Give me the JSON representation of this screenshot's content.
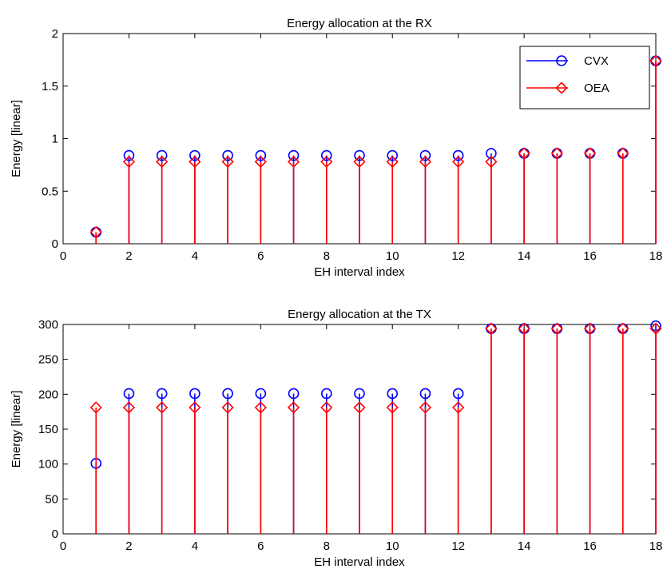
{
  "chart_data": [
    {
      "type": "stem",
      "title": "Energy allocation at the RX",
      "xlabel": "EH interval index",
      "ylabel": "Energy [linear]",
      "xlim": [
        0,
        18
      ],
      "ylim": [
        0,
        2
      ],
      "xticks": [
        "0",
        "2",
        "4",
        "6",
        "8",
        "10",
        "12",
        "14",
        "16",
        "18"
      ],
      "yticks": [
        "0",
        "0.5",
        "1",
        "1.5",
        "2"
      ],
      "grid": false,
      "legend_position": "top-right",
      "x": [
        1,
        2,
        3,
        4,
        5,
        6,
        7,
        8,
        9,
        10,
        11,
        12,
        13,
        14,
        15,
        16,
        17,
        18
      ],
      "series": [
        {
          "name": "CVX",
          "color": "#0000ff",
          "marker": "circle",
          "values": [
            0.11,
            0.84,
            0.84,
            0.84,
            0.84,
            0.84,
            0.84,
            0.84,
            0.84,
            0.84,
            0.84,
            0.84,
            0.86,
            0.86,
            0.86,
            0.86,
            0.86,
            1.74
          ]
        },
        {
          "name": "OEA",
          "color": "#ff0000",
          "marker": "diamond",
          "values": [
            0.11,
            0.78,
            0.78,
            0.78,
            0.78,
            0.78,
            0.78,
            0.78,
            0.78,
            0.78,
            0.78,
            0.78,
            0.78,
            0.86,
            0.86,
            0.86,
            0.86,
            1.74
          ]
        }
      ]
    },
    {
      "type": "stem",
      "title": "Energy allocation at the TX",
      "xlabel": "EH interval index",
      "ylabel": "Energy [linear]",
      "xlim": [
        0,
        18
      ],
      "ylim": [
        0,
        300
      ],
      "xticks": [
        "0",
        "2",
        "4",
        "6",
        "8",
        "10",
        "12",
        "14",
        "16",
        "18"
      ],
      "yticks": [
        "0",
        "50",
        "100",
        "150",
        "200",
        "250",
        "300"
      ],
      "grid": false,
      "x": [
        1,
        2,
        3,
        4,
        5,
        6,
        7,
        8,
        9,
        10,
        11,
        12,
        13,
        14,
        15,
        16,
        17,
        18
      ],
      "series": [
        {
          "name": "CVX",
          "color": "#0000ff",
          "marker": "circle",
          "values": [
            101,
            201,
            201,
            201,
            201,
            201,
            201,
            201,
            201,
            201,
            201,
            201,
            294,
            294,
            294,
            294,
            294,
            298
          ]
        },
        {
          "name": "OEA",
          "color": "#ff0000",
          "marker": "diamond",
          "values": [
            181,
            181,
            181,
            181,
            181,
            181,
            181,
            181,
            181,
            181,
            181,
            181,
            294,
            294,
            294,
            294,
            294,
            294
          ]
        }
      ]
    }
  ]
}
